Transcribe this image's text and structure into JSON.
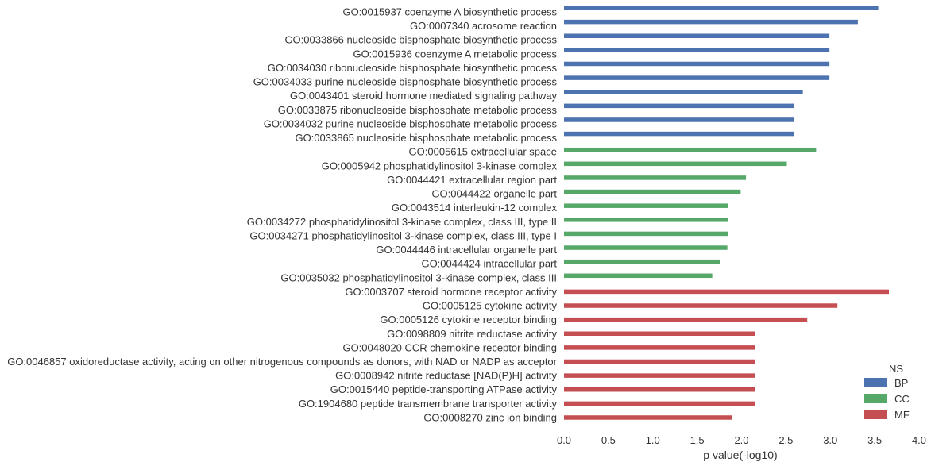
{
  "chart_data": {
    "type": "bar",
    "orientation": "horizontal",
    "xlabel": "p value(-log10)",
    "xlim": [
      0,
      4
    ],
    "xticks": [
      "0.0",
      "0.5",
      "1.0",
      "1.5",
      "2.0",
      "2.5",
      "3.0",
      "3.5",
      "4.0"
    ],
    "grid": false,
    "legend": {
      "title": "NS",
      "placement": "bottom-right",
      "entries": [
        {
          "name": "BP",
          "color": "#4c72b0"
        },
        {
          "name": "CC",
          "color": "#55a868"
        },
        {
          "name": "MF",
          "color": "#c44e52"
        }
      ]
    },
    "categories": [
      {
        "label": "GO:0015937 coenzyme A biosynthetic process",
        "value": 3.54,
        "ns": "BP"
      },
      {
        "label": "GO:0007340 acrosome reaction",
        "value": 3.31,
        "ns": "BP"
      },
      {
        "label": "GO:0033866 nucleoside bisphosphate biosynthetic process",
        "value": 2.99,
        "ns": "BP"
      },
      {
        "label": "GO:0015936 coenzyme A metabolic process",
        "value": 2.99,
        "ns": "BP"
      },
      {
        "label": "GO:0034030 ribonucleoside bisphosphate biosynthetic process",
        "value": 2.99,
        "ns": "BP"
      },
      {
        "label": "GO:0034033 purine nucleoside bisphosphate biosynthetic process",
        "value": 2.99,
        "ns": "BP"
      },
      {
        "label": "GO:0043401 steroid hormone mediated signaling pathway",
        "value": 2.69,
        "ns": "BP"
      },
      {
        "label": "GO:0033875 ribonucleoside bisphosphate metabolic process",
        "value": 2.59,
        "ns": "BP"
      },
      {
        "label": "GO:0034032 purine nucleoside bisphosphate metabolic process",
        "value": 2.59,
        "ns": "BP"
      },
      {
        "label": "GO:0033865 nucleoside bisphosphate metabolic process",
        "value": 2.59,
        "ns": "BP"
      },
      {
        "label": "GO:0005615 extracellular space",
        "value": 2.84,
        "ns": "CC"
      },
      {
        "label": "GO:0005942 phosphatidylinositol 3-kinase complex",
        "value": 2.51,
        "ns": "CC"
      },
      {
        "label": "GO:0044421 extracellular region part",
        "value": 2.05,
        "ns": "CC"
      },
      {
        "label": "GO:0044422 organelle part",
        "value": 1.99,
        "ns": "CC"
      },
      {
        "label": "GO:0043514 interleukin-12 complex",
        "value": 1.85,
        "ns": "CC"
      },
      {
        "label": "GO:0034272 phosphatidylinositol 3-kinase complex, class III, type II",
        "value": 1.85,
        "ns": "CC"
      },
      {
        "label": "GO:0034271 phosphatidylinositol 3-kinase complex, class III, type I",
        "value": 1.85,
        "ns": "CC"
      },
      {
        "label": "GO:0044446 intracellular organelle part",
        "value": 1.84,
        "ns": "CC"
      },
      {
        "label": "GO:0044424 intracellular part",
        "value": 1.76,
        "ns": "CC"
      },
      {
        "label": "GO:0035032 phosphatidylinositol 3-kinase complex, class III",
        "value": 1.67,
        "ns": "CC"
      },
      {
        "label": "GO:0003707 steroid hormone receptor activity",
        "value": 3.66,
        "ns": "MF"
      },
      {
        "label": "GO:0005125 cytokine activity",
        "value": 3.08,
        "ns": "MF"
      },
      {
        "label": "GO:0005126 cytokine receptor binding",
        "value": 2.74,
        "ns": "MF"
      },
      {
        "label": "GO:0098809 nitrite reductase activity",
        "value": 2.15,
        "ns": "MF"
      },
      {
        "label": "GO:0048020 CCR chemokine receptor binding",
        "value": 2.15,
        "ns": "MF"
      },
      {
        "label": "GO:0046857 oxidoreductase activity, acting on other nitrogenous compounds as donors, with NAD or NADP as acceptor",
        "value": 2.15,
        "ns": "MF"
      },
      {
        "label": "GO:0008942 nitrite reductase [NAD(P)H] activity",
        "value": 2.15,
        "ns": "MF"
      },
      {
        "label": "GO:0015440 peptide-transporting ATPase activity",
        "value": 2.15,
        "ns": "MF"
      },
      {
        "label": "GO:1904680 peptide transmembrane transporter activity",
        "value": 2.15,
        "ns": "MF"
      },
      {
        "label": "GO:0008270 zinc ion binding",
        "value": 1.89,
        "ns": "MF"
      }
    ]
  }
}
